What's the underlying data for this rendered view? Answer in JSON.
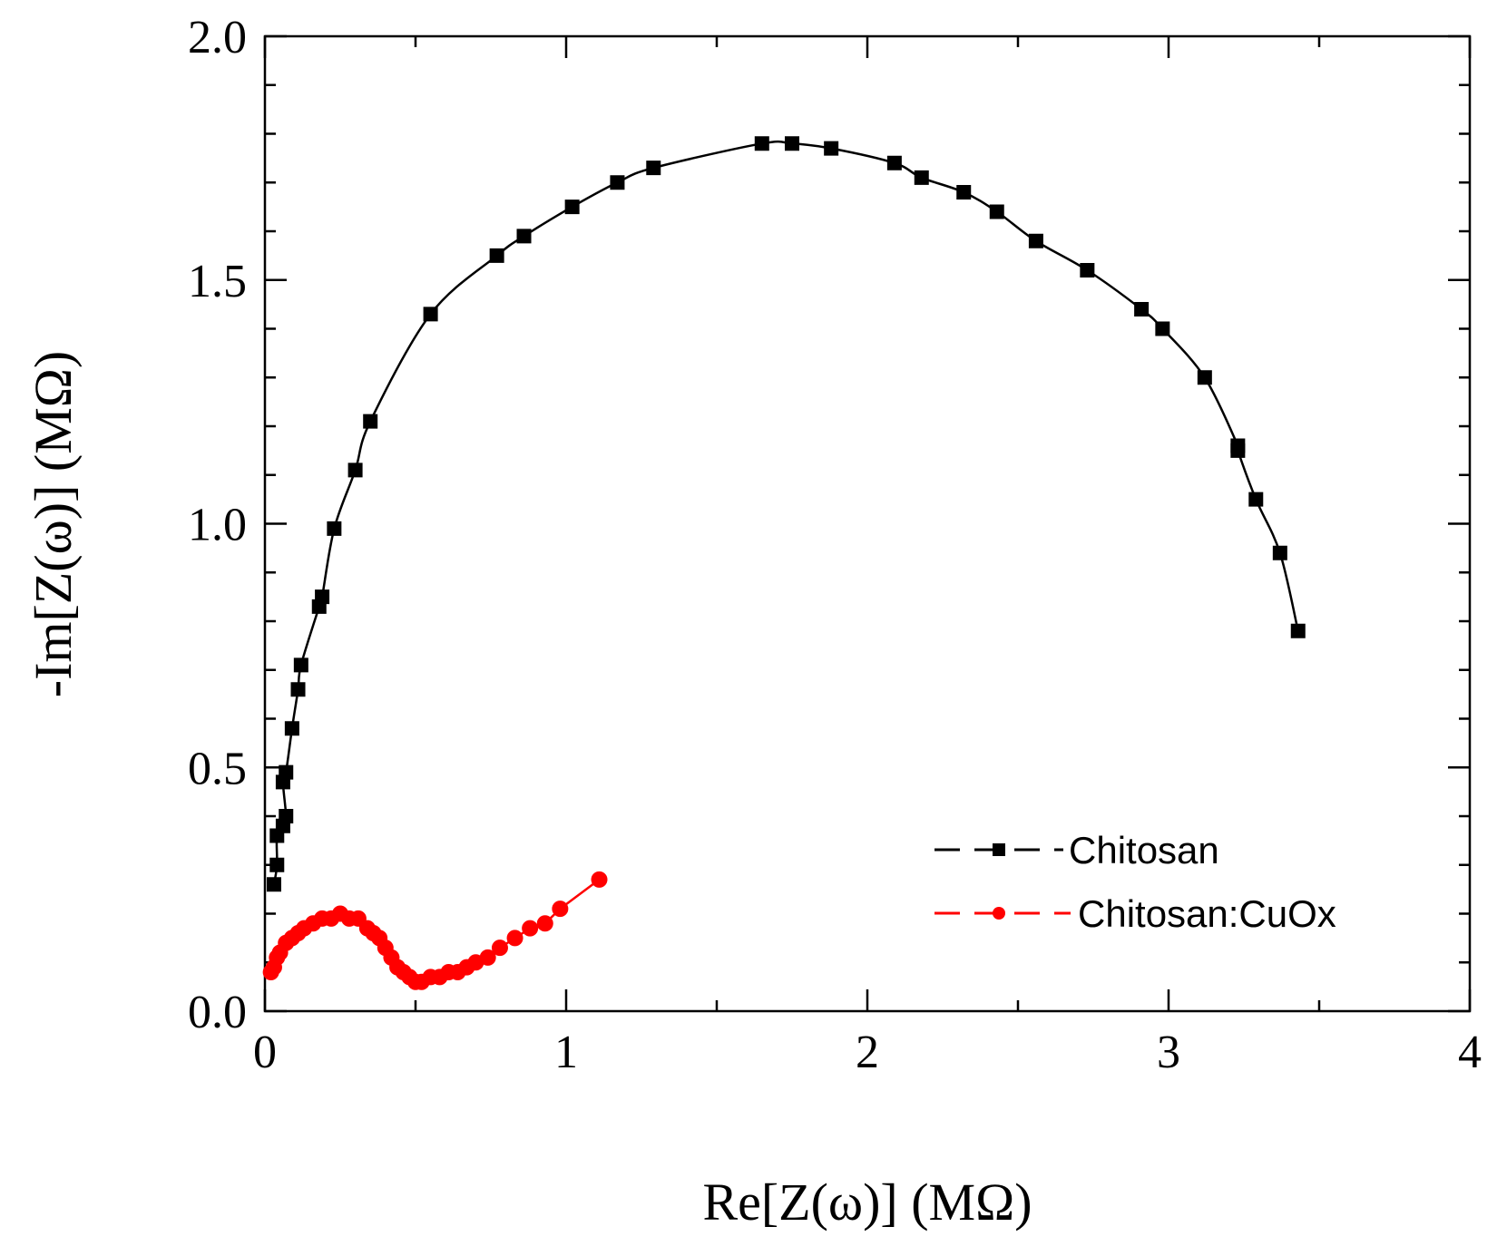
{
  "chart_data": {
    "type": "scatter",
    "title": "",
    "xlabel": "Re[Z(ω)] (MΩ)",
    "ylabel": "-Im[Z(ω)] (MΩ)",
    "xlim": [
      0,
      4
    ],
    "ylim": [
      0,
      2.0
    ],
    "xticks": [
      0,
      1,
      2,
      3,
      4
    ],
    "xtick_labels": [
      "0",
      "1",
      "2",
      "3",
      "4"
    ],
    "yticks": [
      0,
      0.5,
      1.0,
      1.5,
      2.0
    ],
    "ytick_labels": [
      "0.0",
      "0.5",
      "1.0",
      "1.5",
      "2.0"
    ],
    "grid": false,
    "legend_position": "bottom-right",
    "series": [
      {
        "name": "Chitosan",
        "legend_label": "Chitosan",
        "color": "#000000",
        "marker": "square",
        "points": [
          [
            0.03,
            0.26
          ],
          [
            0.04,
            0.3
          ],
          [
            0.04,
            0.36
          ],
          [
            0.06,
            0.38
          ],
          [
            0.07,
            0.4
          ],
          [
            0.06,
            0.47
          ],
          [
            0.07,
            0.49
          ],
          [
            0.09,
            0.58
          ],
          [
            0.11,
            0.66
          ],
          [
            0.12,
            0.71
          ],
          [
            0.18,
            0.83
          ],
          [
            0.19,
            0.85
          ],
          [
            0.23,
            0.99
          ],
          [
            0.3,
            1.11
          ],
          [
            0.35,
            1.21
          ],
          [
            0.55,
            1.43
          ],
          [
            0.77,
            1.55
          ],
          [
            0.86,
            1.59
          ],
          [
            1.02,
            1.65
          ],
          [
            1.17,
            1.7
          ],
          [
            1.29,
            1.73
          ],
          [
            1.65,
            1.78
          ],
          [
            1.75,
            1.78
          ],
          [
            1.88,
            1.77
          ],
          [
            2.09,
            1.74
          ],
          [
            2.18,
            1.71
          ],
          [
            2.32,
            1.68
          ],
          [
            2.43,
            1.64
          ],
          [
            2.56,
            1.58
          ],
          [
            2.73,
            1.52
          ],
          [
            2.91,
            1.44
          ],
          [
            2.98,
            1.4
          ],
          [
            3.12,
            1.3
          ],
          [
            3.23,
            1.16
          ],
          [
            3.23,
            1.15
          ],
          [
            3.29,
            1.05
          ],
          [
            3.37,
            0.94
          ],
          [
            3.43,
            0.78
          ]
        ]
      },
      {
        "name": "Chitosan:CuOx",
        "legend_label": "Chitosan:CuOx",
        "color": "#ff0000",
        "marker": "circle",
        "points": [
          [
            0.02,
            0.08
          ],
          [
            0.03,
            0.09
          ],
          [
            0.04,
            0.11
          ],
          [
            0.05,
            0.12
          ],
          [
            0.07,
            0.14
          ],
          [
            0.09,
            0.15
          ],
          [
            0.11,
            0.16
          ],
          [
            0.13,
            0.17
          ],
          [
            0.16,
            0.18
          ],
          [
            0.19,
            0.19
          ],
          [
            0.22,
            0.19
          ],
          [
            0.25,
            0.2
          ],
          [
            0.28,
            0.19
          ],
          [
            0.31,
            0.19
          ],
          [
            0.34,
            0.17
          ],
          [
            0.36,
            0.16
          ],
          [
            0.38,
            0.15
          ],
          [
            0.4,
            0.13
          ],
          [
            0.42,
            0.11
          ],
          [
            0.44,
            0.09
          ],
          [
            0.46,
            0.08
          ],
          [
            0.48,
            0.07
          ],
          [
            0.5,
            0.06
          ],
          [
            0.52,
            0.06
          ],
          [
            0.55,
            0.07
          ],
          [
            0.58,
            0.07
          ],
          [
            0.61,
            0.08
          ],
          [
            0.64,
            0.08
          ],
          [
            0.67,
            0.09
          ],
          [
            0.7,
            0.1
          ],
          [
            0.74,
            0.11
          ],
          [
            0.78,
            0.13
          ],
          [
            0.83,
            0.15
          ],
          [
            0.88,
            0.17
          ],
          [
            0.93,
            0.18
          ],
          [
            0.98,
            0.21
          ],
          [
            1.11,
            0.27
          ]
        ]
      }
    ]
  }
}
